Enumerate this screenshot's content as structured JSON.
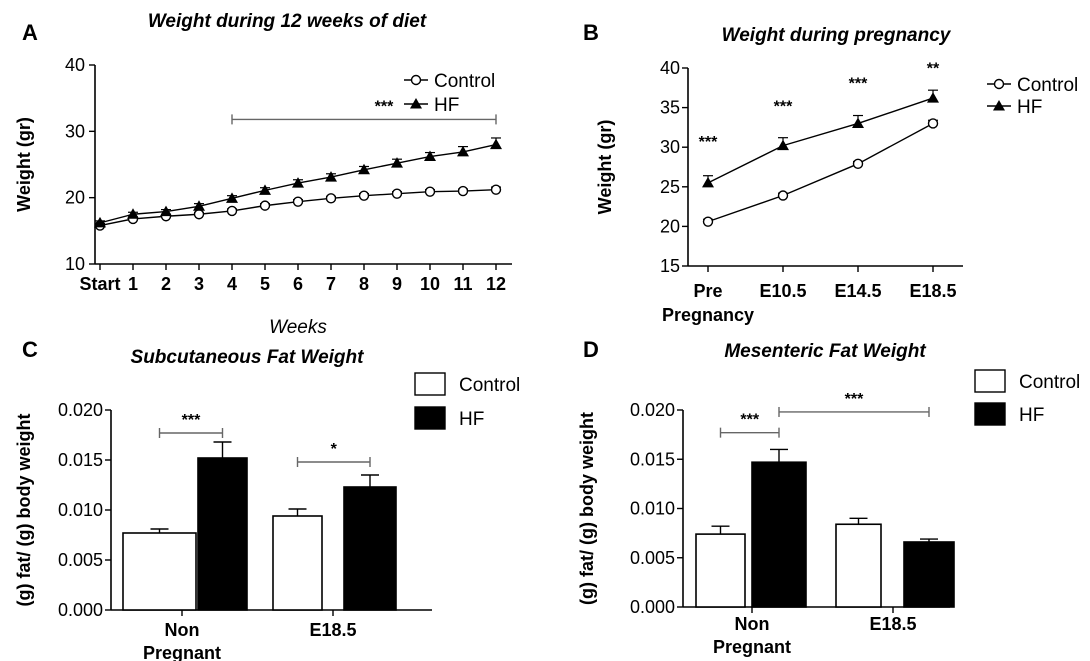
{
  "panels": [
    {
      "label": "A"
    },
    {
      "label": "B"
    },
    {
      "label": "C"
    },
    {
      "label": "D"
    }
  ],
  "colors": {
    "control_fill": "#ffffff",
    "hf_fill": "#000000",
    "axis": "#000000",
    "bracket": "#666666"
  },
  "chart_data": [
    {
      "panel": "A",
      "type": "line",
      "title": "Weight during 12 weeks of diet",
      "xlabel": "Weeks",
      "ylabel": "Weight (gr)",
      "ylim": [
        10,
        40
      ],
      "yticks": [
        10,
        20,
        30,
        40
      ],
      "categories": [
        "Start",
        "1",
        "2",
        "3",
        "4",
        "5",
        "6",
        "7",
        "8",
        "9",
        "10",
        "11",
        "12"
      ],
      "series": [
        {
          "name": "Control",
          "marker": "open-circle",
          "values": [
            15.8,
            16.8,
            17.2,
            17.5,
            18.0,
            18.8,
            19.4,
            19.9,
            20.3,
            20.6,
            20.9,
            21.0,
            21.2
          ],
          "errors": [
            0.3,
            0.3,
            0.3,
            0.3,
            0.3,
            0.3,
            0.3,
            0.3,
            0.3,
            0.3,
            0.3,
            0.3,
            0.4
          ]
        },
        {
          "name": "HF",
          "marker": "filled-triangle",
          "values": [
            16.2,
            17.5,
            17.9,
            18.7,
            19.9,
            21.1,
            22.2,
            23.1,
            24.2,
            25.2,
            26.2,
            26.9,
            28.0
          ],
          "errors": [
            0.3,
            0.3,
            0.3,
            0.4,
            0.4,
            0.4,
            0.5,
            0.5,
            0.5,
            0.6,
            0.6,
            0.8,
            1.0
          ]
        }
      ],
      "legend": "top-right",
      "annotations": [
        {
          "text": "***",
          "from": "4",
          "to": "12",
          "y": 31.8
        }
      ]
    },
    {
      "panel": "B",
      "type": "line",
      "title": "Weight during pregnancy",
      "xlabel": "",
      "ylabel": "Weight (gr)",
      "ylim": [
        15,
        40
      ],
      "yticks": [
        15,
        20,
        25,
        30,
        35,
        40
      ],
      "categories": [
        "Pre\nPregnancy",
        "E10.5",
        "E14.5",
        "E18.5"
      ],
      "series": [
        {
          "name": "Control",
          "marker": "open-circle",
          "values": [
            20.6,
            23.9,
            27.9,
            33.0
          ],
          "errors": [
            0.3,
            0.3,
            0.3,
            0.4
          ]
        },
        {
          "name": "HF",
          "marker": "filled-triangle",
          "values": [
            25.5,
            30.2,
            33.0,
            36.2
          ],
          "errors": [
            0.9,
            1.0,
            1.0,
            1.0
          ]
        }
      ],
      "legend": "top-right",
      "annotations": [
        {
          "text": "***",
          "at": "Pre\nPregnancy",
          "y": 30.0
        },
        {
          "text": "***",
          "at": "E10.5",
          "y": 34.5
        },
        {
          "text": "***",
          "at": "E14.5",
          "y": 37.4
        },
        {
          "text": "**",
          "at": "E18.5",
          "y": 39.3
        }
      ]
    },
    {
      "panel": "C",
      "type": "bar",
      "title": "Subcutaneous Fat Weight",
      "xlabel": "",
      "ylabel": "(g) fat/ (g) body weight",
      "ylim": [
        0,
        0.02
      ],
      "yticks": [
        "0.000",
        "0.005",
        "0.010",
        "0.015",
        "0.020"
      ],
      "categories": [
        "Non\nPregnant",
        "E18.5"
      ],
      "series": [
        {
          "name": "Control",
          "values": [
            0.0077,
            0.0094
          ],
          "errors": [
            0.0004,
            0.0007
          ]
        },
        {
          "name": "HF",
          "values": [
            0.0152,
            0.0123
          ],
          "errors": [
            0.0016,
            0.0012
          ]
        }
      ],
      "legend": "top-right",
      "annotations": [
        {
          "text": "***",
          "from": [
            0,
            0
          ],
          "to": [
            0,
            1
          ],
          "y": 0.0177
        },
        {
          "text": "*",
          "from": [
            1,
            0
          ],
          "to": [
            1,
            1
          ],
          "y": 0.0148
        }
      ]
    },
    {
      "panel": "D",
      "type": "bar",
      "title": "Mesenteric Fat Weight",
      "xlabel": "",
      "ylabel": "(g) fat/ (g) body weight",
      "ylim": [
        0,
        0.02
      ],
      "yticks": [
        "0.000",
        "0.005",
        "0.010",
        "0.015",
        "0.020"
      ],
      "categories": [
        "Non\nPregnant",
        "E18.5"
      ],
      "series": [
        {
          "name": "Control",
          "values": [
            0.0074,
            0.0084
          ],
          "errors": [
            0.0008,
            0.0006
          ]
        },
        {
          "name": "HF",
          "values": [
            0.0147,
            0.0066
          ],
          "errors": [
            0.0013,
            0.0003
          ]
        }
      ],
      "legend": "top-right",
      "annotations": [
        {
          "text": "***",
          "from": [
            0,
            0
          ],
          "to": [
            0,
            1
          ],
          "y": 0.0177
        },
        {
          "text": "***",
          "from": [
            0,
            1
          ],
          "to": [
            1,
            1
          ],
          "y": 0.0198
        }
      ]
    }
  ]
}
